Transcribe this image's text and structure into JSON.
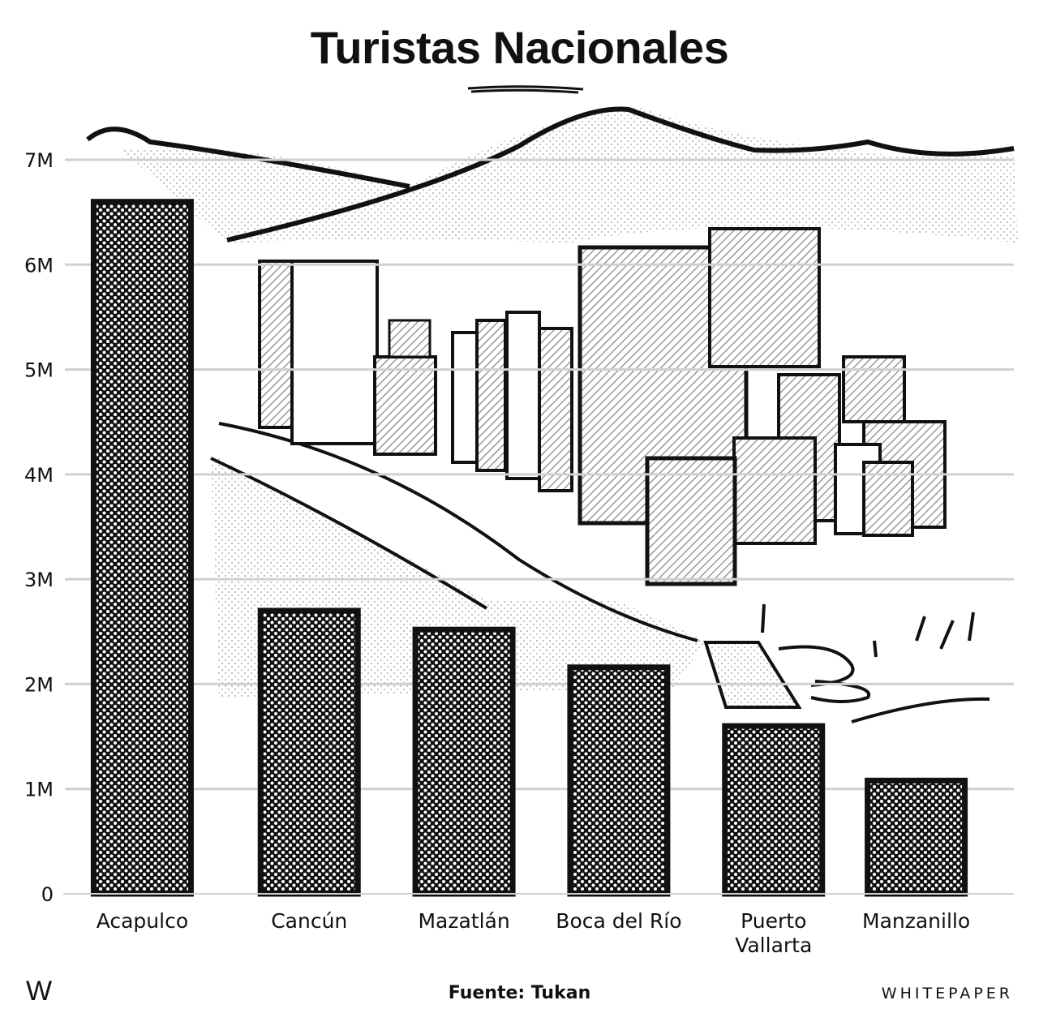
{
  "chart_data": {
    "type": "bar",
    "title": "Turistas Nacionales",
    "categories": [
      "Acapulco",
      "Cancún",
      "Mazatlán",
      "Boca del Río",
      "Puerto Vallarta",
      "Manzanillo"
    ],
    "category_lines": [
      [
        "Acapulco"
      ],
      [
        "Cancún"
      ],
      [
        "Mazatlán"
      ],
      [
        "Boca del Río"
      ],
      [
        "Puerto",
        "Vallarta"
      ],
      [
        "Manzanillo"
      ]
    ],
    "values": [
      6600000,
      2700000,
      2520000,
      2160000,
      1600000,
      1080000
    ],
    "yticks": [
      0,
      1000000,
      2000000,
      3000000,
      4000000,
      5000000,
      6000000,
      7000000
    ],
    "ytick_labels": [
      "0",
      "1M",
      "2M",
      "3M",
      "4M",
      "5M",
      "6M",
      "7M"
    ],
    "ylim": [
      0,
      7000000
    ],
    "xlabel": "",
    "ylabel": "",
    "grid": true,
    "bar_color": "#111111"
  },
  "footer": {
    "logo": "W",
    "source": "Fuente: Tukan",
    "brand": "WHITEPAPER"
  }
}
